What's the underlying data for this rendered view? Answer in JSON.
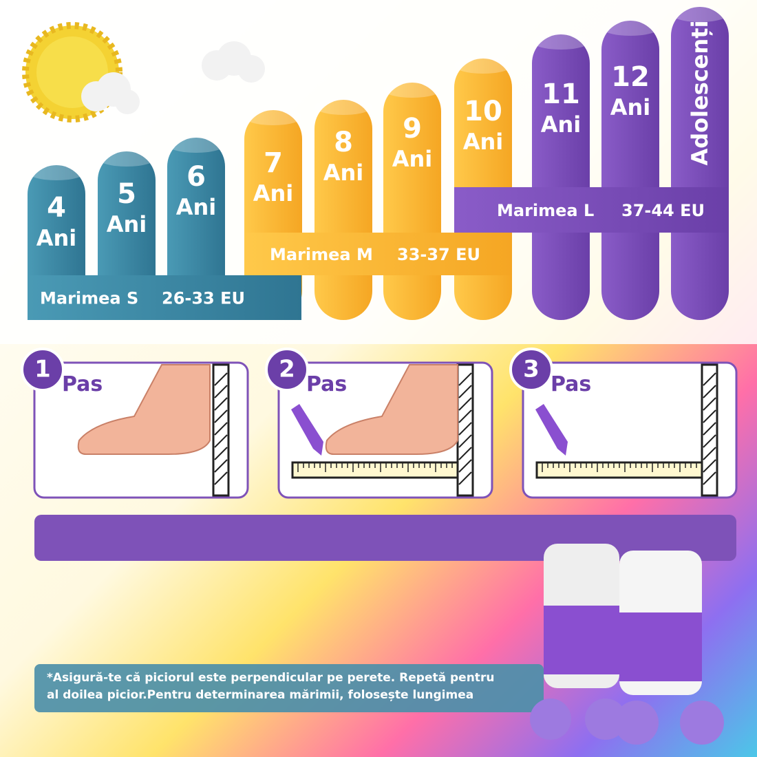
{
  "columns": [
    {
      "number": "4",
      "label": "Ani"
    },
    {
      "number": "5",
      "label": "Ani"
    },
    {
      "number": "6",
      "label": "Ani"
    },
    {
      "number": "7",
      "label": "Ani"
    },
    {
      "number": "8",
      "label": "Ani"
    },
    {
      "number": "9",
      "label": "Ani"
    },
    {
      "number": "10",
      "label": "Ani"
    },
    {
      "number": "11",
      "label": "Ani"
    },
    {
      "number": "12",
      "label": "Ani"
    },
    {
      "label": "Adolescenți"
    }
  ],
  "sizes": [
    {
      "name": "Marimea S",
      "range": "26-33 EU"
    },
    {
      "name": "Marimea M",
      "range": "33-37 EU"
    },
    {
      "name": "Marimea L",
      "range": "37-44 EU"
    }
  ],
  "steps": [
    {
      "number": "1",
      "label": "Pas"
    },
    {
      "number": "2",
      "label": "Pas"
    },
    {
      "number": "3",
      "label": "Pas"
    }
  ],
  "note": {
    "lines": [
      "*Asigură-te că piciorul este perpendicular pe perete. Repetă pentru",
      "al doilea picior.Pentru determinarea mărimii, folosește lungimea"
    ]
  }
}
